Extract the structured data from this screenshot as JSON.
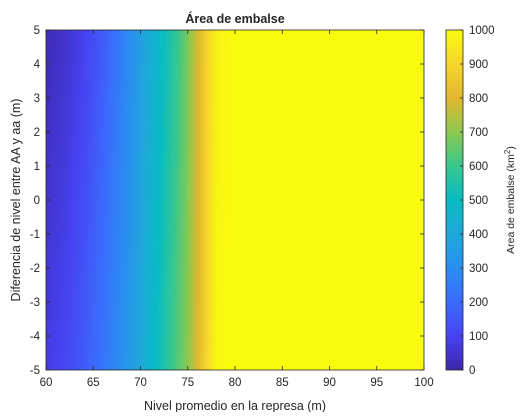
{
  "chart_data": {
    "type": "heatmap",
    "title": "Área de embalse",
    "xlabel": "Nivel promedio en la represa (m)",
    "ylabel": "Diferencia de nivel entre AA y aa (m)",
    "colorbar_label": "Area de embalse (km",
    "colorbar_label_sup": "2",
    "colorbar_label_close": ")",
    "colormap": "parula",
    "xlim": [
      60,
      100
    ],
    "ylim": [
      -5,
      5
    ],
    "clim": [
      0,
      1000
    ],
    "x_ticks": [
      "60",
      "65",
      "70",
      "75",
      "80",
      "85",
      "90",
      "95",
      "100"
    ],
    "y_ticks": [
      "-5",
      "-4",
      "-3",
      "-2",
      "-1",
      "0",
      "1",
      "2",
      "3",
      "4",
      "5"
    ],
    "colorbar_ticks": [
      "0",
      "100",
      "200",
      "300",
      "400",
      "500",
      "600",
      "700",
      "800",
      "900",
      "1000"
    ],
    "profile_x": [
      60,
      62,
      64,
      66,
      68,
      70,
      72,
      74,
      75,
      76,
      77,
      78,
      79,
      80,
      100
    ],
    "profile_values_at_y_min": [
      80,
      110,
      160,
      230,
      310,
      400,
      520,
      640,
      700,
      790,
      900,
      990,
      1000,
      1000,
      1000
    ],
    "profile_values_at_y_max": [
      20,
      45,
      90,
      160,
      250,
      360,
      480,
      600,
      680,
      780,
      890,
      970,
      990,
      1000,
      1000
    ]
  }
}
